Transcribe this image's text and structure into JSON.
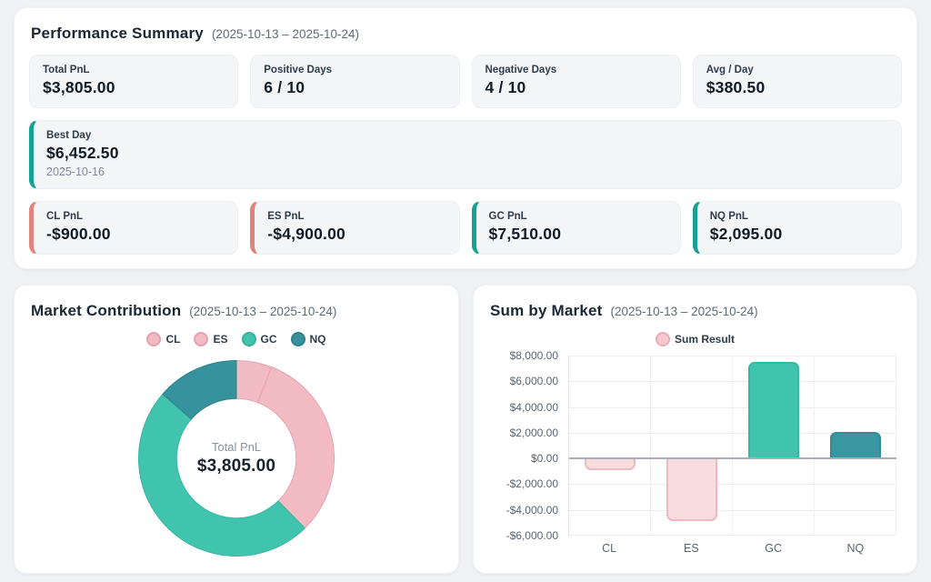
{
  "performance_summary": {
    "title": "Performance Summary",
    "date_range": "(2025-10-13 – 2025-10-24)",
    "stats": [
      {
        "label": "Total PnL",
        "value": "$3,805.00"
      },
      {
        "label": "Positive Days",
        "value": "6 / 10"
      },
      {
        "label": "Negative Days",
        "value": "4 / 10"
      },
      {
        "label": "Avg / Day",
        "value": "$380.50"
      }
    ],
    "best_day": {
      "label": "Best Day",
      "value": "$6,452.50",
      "date": "2025-10-16",
      "accent": "#16a195"
    },
    "market_pnl": [
      {
        "label": "CL PnL",
        "value": "-$900.00",
        "accent": "#e0837d"
      },
      {
        "label": "ES PnL",
        "value": "-$4,900.00",
        "accent": "#e0837d"
      },
      {
        "label": "GC PnL",
        "value": "$7,510.00",
        "accent": "#16a195"
      },
      {
        "label": "NQ PnL",
        "value": "$2,095.00",
        "accent": "#16a195"
      }
    ]
  },
  "market_contribution": {
    "title": "Market Contribution",
    "date_range": "(2025-10-13 – 2025-10-24)",
    "center_label": "Total PnL",
    "center_value": "$3,805.00",
    "legend": [
      {
        "label": "CL",
        "fill": "#f2bac2",
        "border": "#e7a2ad"
      },
      {
        "label": "ES",
        "fill": "#f2bac2",
        "border": "#e7a2ad"
      },
      {
        "label": "GC",
        "fill": "#41c4ae",
        "border": "#33b29d"
      },
      {
        "label": "NQ",
        "fill": "#36929c",
        "border": "#2c818b"
      }
    ]
  },
  "sum_by_market": {
    "title": "Sum by Market",
    "date_range": "(2025-10-13 – 2025-10-24)",
    "legend": {
      "label": "Sum Result",
      "fill": "#f5c9cf",
      "border": "#ecacb5"
    }
  },
  "chart_data": [
    {
      "type": "pie",
      "title": "Market Contribution",
      "subtype": "donut",
      "categories": [
        "CL",
        "ES",
        "GC",
        "NQ"
      ],
      "values": [
        900,
        4900,
        7510,
        2095
      ],
      "center_text": [
        "Total PnL",
        "$3,805.00"
      ],
      "colors": [
        "#f2bac2",
        "#f2bac2",
        "#41c4ae",
        "#36929c"
      ],
      "border_colors": [
        "#e7a2ad",
        "#e7a2ad",
        "#35b7a2",
        "#2f838d"
      ],
      "legend_position": "top",
      "note": "slices are absolute PnL per market, clockwise from top"
    },
    {
      "type": "bar",
      "title": "Sum by Market",
      "series_name": "Sum Result",
      "categories": [
        "CL",
        "ES",
        "GC",
        "NQ"
      ],
      "values": [
        -900,
        -4900,
        7510,
        2095
      ],
      "ylim": [
        -6000,
        8000
      ],
      "ytick_step": 2000,
      "ytick_labels": [
        "$8,000.00",
        "$6,000.00",
        "$4,000.00",
        "$2,000.00",
        "$0.00",
        "-$2,000.00",
        "-$4,000.00",
        "-$6,000.00"
      ],
      "bar_fills": [
        "#f9dce0",
        "#f9dce0",
        "#41c4ae",
        "#3a97a1"
      ],
      "bar_borders": [
        "#f0b9c0",
        "#f0b9c0",
        "#38b8a3",
        "#338b94"
      ],
      "grid": true,
      "legend_position": "top"
    }
  ]
}
